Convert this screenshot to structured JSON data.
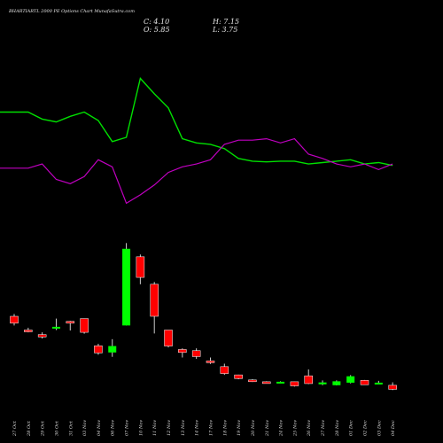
{
  "header": {
    "title": "BHARTIARTL 2000 PE Options Chart MunafaSutra.com",
    "close_label": "C: 4.10",
    "open_label": "O: 5.85",
    "high_label": "H: 7.15",
    "low_label": "L: 3.75"
  },
  "colors": {
    "background": "#000000",
    "up": "#00ff00",
    "down": "#ff0000",
    "line_green": "#00e000",
    "line_magenta": "#c000c0",
    "wick": "#cccccc"
  },
  "chart_data": {
    "type": "candlestick",
    "title": "BHARTIARTL 2000 PE Options Chart MunafaSutra.com",
    "dates": [
      "27 Oct",
      "28 Oct",
      "29 Oct",
      "30 Oct",
      "31 Oct",
      "03 Nov",
      "04 Nov",
      "06 Nov",
      "07 Nov",
      "10 Nov",
      "11 Nov",
      "12 Nov",
      "13 Nov",
      "14 Nov",
      "17 Nov",
      "18 Nov",
      "19 Nov",
      "20 Nov",
      "21 Nov",
      "24 Nov",
      "25 Nov",
      "26 Nov",
      "27 Nov",
      "28 Nov",
      "01 Dec",
      "02 Dec",
      "03 Dec",
      "04 Dec"
    ],
    "candles": [
      {
        "o": 36,
        "h": 37,
        "l": 32,
        "c": 33
      },
      {
        "o": 30,
        "h": 31,
        "l": 29,
        "c": 29.3
      },
      {
        "o": 28,
        "h": 29,
        "l": 26.3,
        "c": 27
      },
      {
        "o": 31,
        "h": 35,
        "l": 30,
        "c": 31.4
      },
      {
        "o": 33.8,
        "h": 34,
        "l": 29.8,
        "c": 33.2
      },
      {
        "o": 35,
        "h": 35,
        "l": 28.4,
        "c": 29
      },
      {
        "o": 23.1,
        "h": 24,
        "l": 19.2,
        "c": 20
      },
      {
        "o": 20.2,
        "h": 26,
        "l": 18.3,
        "c": 23
      },
      {
        "o": 32,
        "h": 68,
        "l": 32,
        "c": 65.5
      },
      {
        "o": 62,
        "h": 63,
        "l": 50,
        "c": 53
      },
      {
        "o": 50,
        "h": 51,
        "l": 28.5,
        "c": 36
      },
      {
        "o": 30,
        "h": 30,
        "l": 22.4,
        "c": 23
      },
      {
        "o": 21.5,
        "h": 22,
        "l": 18,
        "c": 20.2
      },
      {
        "o": 21,
        "h": 22,
        "l": 17.4,
        "c": 18.4
      },
      {
        "o": 16.5,
        "h": 18,
        "l": 15.2,
        "c": 15.8
      },
      {
        "o": 14,
        "h": 15.3,
        "l": 10.4,
        "c": 11
      },
      {
        "o": 10.4,
        "h": 10.5,
        "l": 8.5,
        "c": 8.8
      },
      {
        "o": 8.2,
        "h": 8.5,
        "l": 7.3,
        "c": 7.6
      },
      {
        "o": 7.4,
        "h": 7.6,
        "l": 6.8,
        "c": 7.2
      },
      {
        "o": 7.1,
        "h": 7.6,
        "l": 6.8,
        "c": 7.4
      },
      {
        "o": 7.4,
        "h": 7.4,
        "l": 5.3,
        "c": 5.6
      },
      {
        "o": 10,
        "h": 12.8,
        "l": 6.4,
        "c": 6.6
      },
      {
        "o": 6.3,
        "h": 8,
        "l": 5.9,
        "c": 7.1
      },
      {
        "o": 5.9,
        "h": 8,
        "l": 5.8,
        "c": 7.6
      },
      {
        "o": 7,
        "h": 10.3,
        "l": 6.7,
        "c": 9.8
      },
      {
        "o": 8,
        "h": 8.2,
        "l": 6,
        "c": 6.1
      },
      {
        "o": 7,
        "h": 7.8,
        "l": 6.4,
        "c": 7
      },
      {
        "o": 5.85,
        "h": 7.15,
        "l": 3.75,
        "c": 4.1
      }
    ],
    "line_green": [
      78,
      78,
      73,
      71,
      75,
      78,
      72,
      57,
      60,
      102,
      91,
      81,
      59,
      56,
      55,
      52,
      45,
      43,
      42.5,
      43,
      43,
      41,
      42,
      43,
      44,
      41,
      42,
      40
    ],
    "line_magenta": [
      38,
      38,
      41,
      30,
      27,
      32,
      44,
      39,
      13,
      19,
      26,
      35,
      39,
      41,
      44,
      55,
      58,
      58,
      59,
      56,
      59,
      48,
      45,
      41,
      39,
      41,
      37,
      41
    ],
    "ylim_candles": [
      0,
      72
    ],
    "ylim_lines": [
      0,
      120
    ]
  }
}
